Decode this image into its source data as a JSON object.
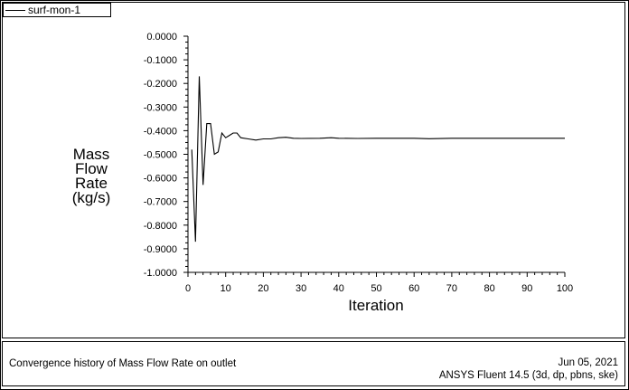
{
  "chart_data": {
    "type": "line",
    "legend": "surf-mon-1",
    "ylabel": [
      "Mass",
      "Flow",
      "Rate",
      "(kg/s)"
    ],
    "xlabel": "Iteration",
    "xlim": [
      0,
      100
    ],
    "ylim": [
      -1.0,
      0.0
    ],
    "x_ticks": [
      "0",
      "10",
      "20",
      "30",
      "40",
      "50",
      "60",
      "70",
      "80",
      "90",
      "100"
    ],
    "y_ticks": [
      "0.0000",
      "-0.1000",
      "-0.2000",
      "-0.3000",
      "-0.4000",
      "-0.5000",
      "-0.6000",
      "-0.7000",
      "-0.8000",
      "-0.9000",
      "-1.0000"
    ],
    "grid": false,
    "legend_position": "top-left",
    "series": [
      {
        "name": "surf-mon-1",
        "color": "#000000",
        "x": [
          1,
          2,
          3,
          4,
          5,
          6,
          7,
          8,
          9,
          10,
          11,
          12,
          13,
          14,
          16,
          18,
          20,
          22,
          24,
          26,
          28,
          30,
          35,
          38,
          40,
          45,
          50,
          60,
          64,
          70,
          80,
          90,
          100
        ],
        "y": [
          -0.48,
          -0.87,
          -0.17,
          -0.63,
          -0.37,
          -0.37,
          -0.5,
          -0.49,
          -0.41,
          -0.43,
          -0.42,
          -0.41,
          -0.41,
          -0.43,
          -0.435,
          -0.44,
          -0.435,
          -0.435,
          -0.43,
          -0.428,
          -0.432,
          -0.433,
          -0.432,
          -0.43,
          -0.432,
          -0.433,
          -0.432,
          -0.432,
          -0.434,
          -0.432,
          -0.432,
          -0.432,
          -0.432
        ]
      }
    ]
  },
  "footer": {
    "title": "Convergence history of Mass Flow Rate on outlet",
    "date": "Jun 05, 2021",
    "solver": "ANSYS Fluent 14.5 (3d, dp, pbns, ske)"
  }
}
